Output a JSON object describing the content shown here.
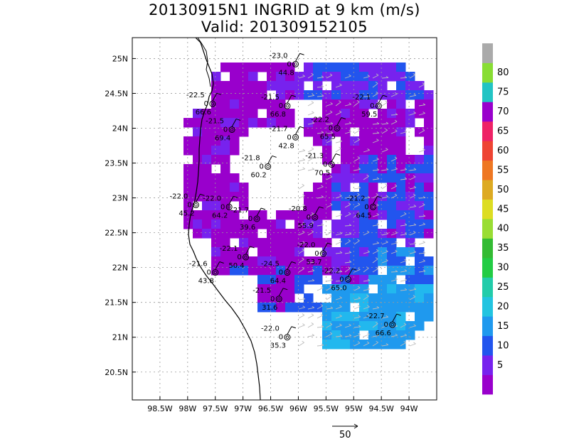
{
  "title": "20130915N1 INGRID at 9 km (m/s)",
  "subtitle": "Valid: 201309152105",
  "x_ticks": [
    "98.5W",
    "98W",
    "97.5W",
    "97W",
    "96.5W",
    "96W",
    "95.5W",
    "95W",
    "94.5W",
    "94W"
  ],
  "y_ticks": [
    "25N",
    "24.5N",
    "24N",
    "23.5N",
    "23N",
    "22.5N",
    "22N",
    "21.5N",
    "21N",
    "20.5N"
  ],
  "lon_range": [
    -99,
    -93.5
  ],
  "lat_range": [
    20.1,
    25.3
  ],
  "colorbar": {
    "labels": [
      "5",
      "10",
      "15",
      "20",
      "25",
      "30",
      "35",
      "40",
      "45",
      "50",
      "55",
      "60",
      "65",
      "70",
      "75",
      "80"
    ],
    "colors": [
      "#9900cc",
      "#7722ee",
      "#2255ee",
      "#1f99ee",
      "#22c4e0",
      "#22ccaa",
      "#22cc44",
      "#33bb33",
      "#99dd33",
      "#dddd22",
      "#ddaa22",
      "#ee7722",
      "#ee4433",
      "#ee2266",
      "#9900cc",
      "#22c4c4",
      "#88dd33",
      "#aaaaaa"
    ]
  },
  "reference_vector": {
    "label": "50",
    "value": 50
  },
  "stations": [
    {
      "name": "a",
      "lon": -96.05,
      "lat": 24.92,
      "temp": "-23.0",
      "dir": "0",
      "val": "44.8"
    },
    {
      "name": "b",
      "lon": -97.55,
      "lat": 24.35,
      "temp": "-22.5",
      "dir": "0",
      "val": "66.6"
    },
    {
      "name": "c",
      "lon": -96.2,
      "lat": 24.32,
      "temp": "-21.5",
      "dir": "0",
      "val": "66.8"
    },
    {
      "name": "d",
      "lon": -94.55,
      "lat": 24.32,
      "temp": "-22.1",
      "dir": "0",
      "val": "59.5"
    },
    {
      "name": "e",
      "lon": -97.2,
      "lat": 23.98,
      "temp": "-21.5",
      "dir": "0",
      "val": "69.4"
    },
    {
      "name": "f",
      "lon": -96.05,
      "lat": 23.87,
      "temp": "-21.7",
      "dir": "0",
      "val": "42.8"
    },
    {
      "name": "g",
      "lon": -95.3,
      "lat": 24.0,
      "temp": "-22.2",
      "dir": "0",
      "val": "65.5"
    },
    {
      "name": "h",
      "lon": -96.55,
      "lat": 23.45,
      "temp": "-21.8",
      "dir": "0",
      "val": "60.2"
    },
    {
      "name": "i",
      "lon": -95.4,
      "lat": 23.48,
      "temp": "-21.3",
      "dir": "0",
      "val": "70.5"
    },
    {
      "name": "j",
      "lon": -97.85,
      "lat": 22.9,
      "temp": "-22.0",
      "dir": "0",
      "val": "45.2"
    },
    {
      "name": "k",
      "lon": -97.25,
      "lat": 22.87,
      "temp": "-22.0",
      "dir": "0",
      "val": "64.2"
    },
    {
      "name": "l",
      "lon": -96.75,
      "lat": 22.7,
      "temp": "-21.7",
      "dir": "0",
      "val": "39.6"
    },
    {
      "name": "m",
      "lon": -94.65,
      "lat": 22.87,
      "temp": "-21.2",
      "dir": "0",
      "val": "64.5"
    },
    {
      "name": "n",
      "lon": -95.7,
      "lat": 22.72,
      "temp": "-20.8",
      "dir": "0",
      "val": "55.9"
    },
    {
      "name": "o",
      "lon": -96.95,
      "lat": 22.15,
      "temp": "-22.1",
      "dir": "0",
      "val": "50.4"
    },
    {
      "name": "p",
      "lon": -95.55,
      "lat": 22.2,
      "temp": "-22.0",
      "dir": "0",
      "val": "53.7"
    },
    {
      "name": "q",
      "lon": -97.5,
      "lat": 21.93,
      "temp": "-21.6",
      "dir": "0",
      "val": "43.8"
    },
    {
      "name": "r",
      "lon": -96.2,
      "lat": 21.93,
      "temp": "-24.5",
      "dir": "0",
      "val": "64.4"
    },
    {
      "name": "s",
      "lon": -95.1,
      "lat": 21.83,
      "temp": "-22.2",
      "dir": "0",
      "val": "65.0"
    },
    {
      "name": "t",
      "lon": -96.35,
      "lat": 21.55,
      "temp": "-21.5",
      "dir": "0",
      "val": "31.6"
    },
    {
      "name": "u",
      "lon": -94.3,
      "lat": 21.18,
      "temp": "-22.7",
      "dir": "0",
      "val": "66.6"
    },
    {
      "name": "v",
      "lon": -96.2,
      "lat": 21.0,
      "temp": "-22.0",
      "dir": "0",
      "val": "35.3"
    }
  ]
}
